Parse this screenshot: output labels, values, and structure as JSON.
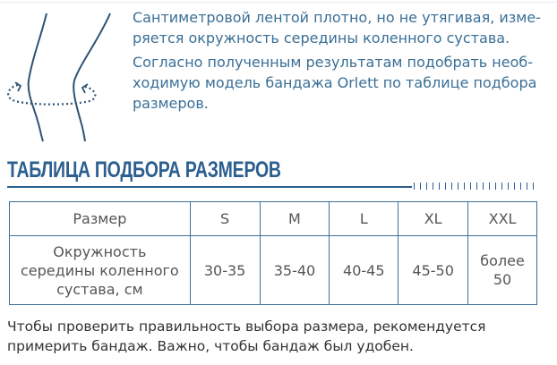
{
  "intro": {
    "paragraphs": [
      [
        "Сантиметровой лентой плотно, но не утягивая, изме-",
        "ряется окружность середины коленного сустава."
      ],
      [
        "Согласно полученным результатам подобрать необ-",
        "ходимую модель бандажа Orlett по таблице подбора",
        "размеров."
      ]
    ]
  },
  "section_title": "ТАБЛИЦА ПОДБОРА РАЗМЕРОВ",
  "table": {
    "header": [
      "Размер",
      "S",
      "M",
      "L",
      "XL",
      "XXL"
    ],
    "row": [
      [
        "Окружность",
        "середины коленного",
        "сустава, см"
      ],
      [
        "30-35"
      ],
      [
        "35-40"
      ],
      [
        "40-45"
      ],
      [
        "45-50"
      ],
      [
        "более",
        "50"
      ]
    ]
  },
  "note": [
    "Чтобы проверить правильность выбора размера, рекомендуется",
    "примерить бандаж. Важно, чтобы бандаж был удобен."
  ],
  "colors": {
    "accent": "#2c5f8f",
    "intro_text": "#3a6f96",
    "table_text": "#555555"
  },
  "icons": [
    "knee-measurement-icon"
  ]
}
